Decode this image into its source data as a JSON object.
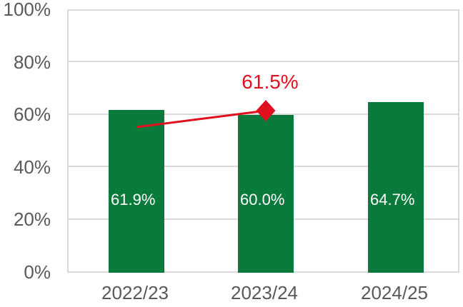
{
  "chart_data": {
    "type": "bar",
    "title": "",
    "categories": [
      "2022/23",
      "2023/24",
      "2024/25"
    ],
    "series": [
      {
        "type": "bar",
        "color": "#0a7a3c",
        "values": [
          61.9,
          60.0,
          64.7
        ],
        "data_labels": [
          "61.9%",
          "60.0%",
          "64.7%"
        ],
        "data_label_color": "#ffffff"
      },
      {
        "type": "line",
        "color": "#e0101e",
        "marker": "diamond",
        "values": [
          55.3,
          61.5,
          null
        ],
        "data_labels": [
          null,
          "61.5%",
          null
        ],
        "data_label_color": "#e0101e"
      }
    ],
    "yticks": {
      "labels": [
        "0%",
        "20%",
        "40%",
        "60%",
        "80%",
        "100%"
      ],
      "values": [
        0,
        20,
        40,
        60,
        80,
        100
      ]
    },
    "ylim": [
      0,
      100
    ],
    "xlabel": "",
    "ylabel": "",
    "grid": "horizontal",
    "legend": "none",
    "colors": {
      "background": "#ffffff",
      "gridline": "#d9d9d9",
      "axis_text": "#595959",
      "bar": "#0a7a3c",
      "line": "#e0101e"
    }
  }
}
